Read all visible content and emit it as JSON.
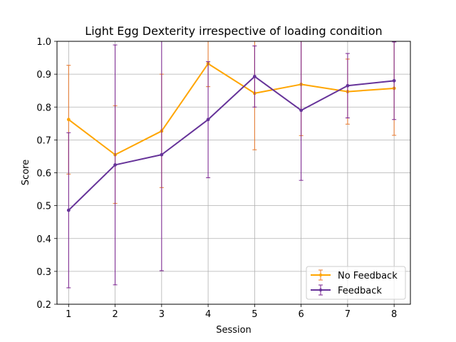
{
  "chart_data": {
    "type": "line",
    "title": "Light Egg Dexterity irrespective of loading condition",
    "xlabel": "Session",
    "ylabel": "Score",
    "x": [
      1,
      2,
      3,
      4,
      5,
      6,
      7,
      8
    ],
    "xlim": [
      0.75,
      8.35
    ],
    "ylim": [
      0.2,
      1.0
    ],
    "yticks": [
      0.2,
      0.3,
      0.4,
      0.5,
      0.6,
      0.7,
      0.8,
      0.9,
      1.0
    ],
    "ytick_labels": [
      "0.2",
      "0.3",
      "0.4",
      "0.5",
      "0.6",
      "0.7",
      "0.8",
      "0.9",
      "1.0"
    ],
    "xtick_labels": [
      "1",
      "2",
      "3",
      "4",
      "5",
      "6",
      "7",
      "8"
    ],
    "grid": true,
    "legend_position": "lower-right",
    "series": [
      {
        "name": "No Feedback",
        "color": "#ffa500",
        "error_color": "#e8772a",
        "values": [
          0.762,
          0.655,
          0.727,
          0.932,
          0.842,
          0.869,
          0.847,
          0.857
        ],
        "err_low": [
          0.596,
          0.507,
          0.555,
          0.862,
          0.67,
          0.713,
          0.748,
          0.714
        ],
        "err_high": [
          0.927,
          0.804,
          0.9,
          1.0,
          1.0,
          1.0,
          0.946,
          1.0
        ]
      },
      {
        "name": "Feedback",
        "color": "#663399",
        "error_color": "#7a2090",
        "values": [
          0.486,
          0.624,
          0.655,
          0.762,
          0.893,
          0.79,
          0.865,
          0.88
        ],
        "err_low": [
          0.25,
          0.259,
          0.302,
          0.585,
          0.8,
          0.577,
          0.767,
          0.762
        ],
        "err_high": [
          0.722,
          0.989,
          1.0,
          0.938,
          0.986,
          1.0,
          0.963,
          0.998
        ]
      }
    ]
  }
}
